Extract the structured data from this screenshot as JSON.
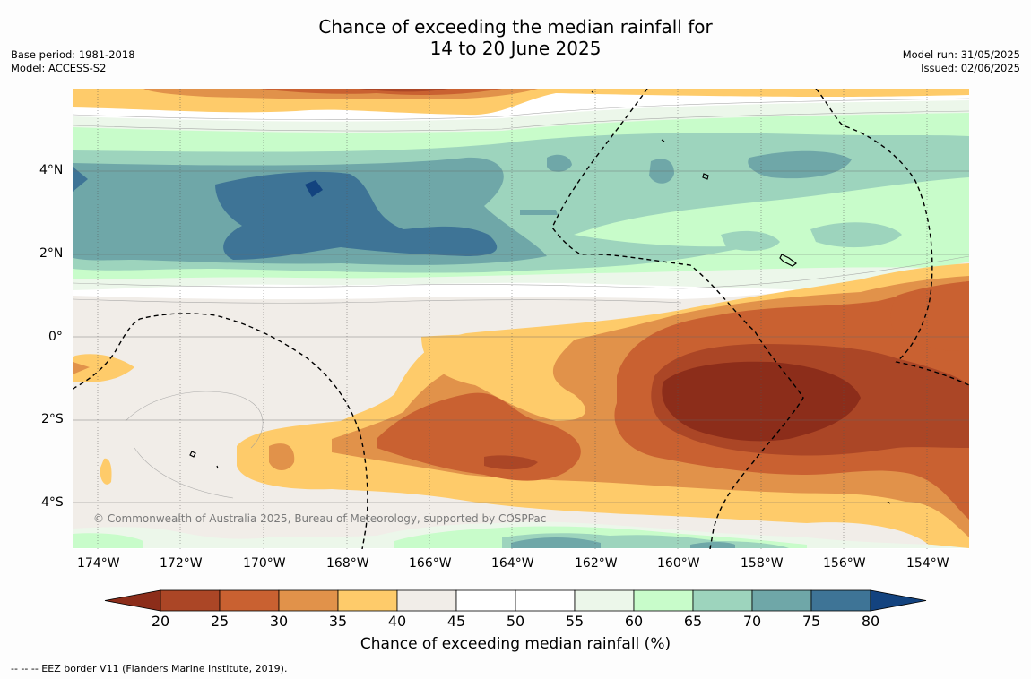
{
  "title_line1": "Chance of exceeding the median rainfall for",
  "title_line2": "14 to 20 June 2025",
  "meta_left": [
    "Base period: 1981-2018",
    "Model: ACCESS-S2"
  ],
  "meta_right": [
    "Model run: 31/05/2025",
    "Issued: 02/06/2025"
  ],
  "copyright": "© Commonwealth of Australia 2025, Bureau of Meteorology, supported by COSPPac",
  "lat_labels": [
    "4°N",
    "2°N",
    "0°",
    "2°S",
    "4°S"
  ],
  "lon_labels": [
    "174°W",
    "172°W",
    "170°W",
    "168°W",
    "166°W",
    "164°W",
    "162°W",
    "160°W",
    "158°W",
    "156°W",
    "154°W"
  ],
  "colorbar": {
    "ticks": [
      "20",
      "25",
      "30",
      "35",
      "40",
      "45",
      "50",
      "55",
      "60",
      "65",
      "70",
      "75",
      "80"
    ],
    "colors": [
      "#8c2d1a",
      "#ab4626",
      "#c96131",
      "#e1924a",
      "#fecb6a",
      "#f1ede8",
      "#ffffff",
      "#ffffff",
      "#ecf7ea",
      "#c8fcca",
      "#9dd4bd",
      "#6fa7a8",
      "#3e7496",
      "#13437f"
    ],
    "label": "Chance of exceeding median rainfall (%)"
  },
  "footnote": "-- -- -- EEZ border V11 (Flanders Marine Institute, 2019)."
}
